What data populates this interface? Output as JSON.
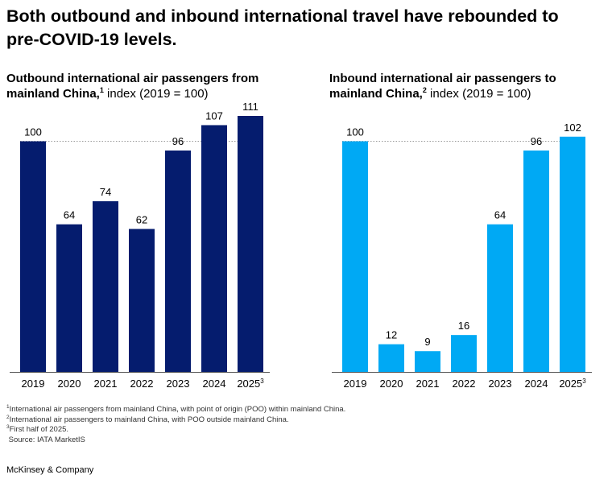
{
  "headline": "Both outbound and inbound international travel have rebounded to pre-COVID-19 levels.",
  "chart_data": [
    {
      "type": "bar",
      "title_bold": "Outbound international air passengers from mainland China,",
      "title_sup": "1",
      "title_rest": " index (2019 = 100)",
      "categories": [
        "2019",
        "2020",
        "2021",
        "2022",
        "2023",
        "2024",
        "2025"
      ],
      "category_sups": [
        "",
        "",
        "",
        "",
        "",
        "",
        "3"
      ],
      "values": [
        100,
        64,
        74,
        62,
        96,
        107,
        111
      ],
      "reference_line": 100,
      "color": "#051c6e",
      "ylim": [
        0,
        111
      ]
    },
    {
      "type": "bar",
      "title_bold": "Inbound international air passengers to mainland China,",
      "title_sup": "2",
      "title_rest": " index (2019 = 100)",
      "categories": [
        "2019",
        "2020",
        "2021",
        "2022",
        "2023",
        "2024",
        "2025"
      ],
      "category_sups": [
        "",
        "",
        "",
        "",
        "",
        "",
        "3"
      ],
      "values": [
        100,
        12,
        9,
        16,
        64,
        96,
        102
      ],
      "reference_line": 100,
      "color": "#00a9f4",
      "ylim": [
        0,
        111
      ]
    }
  ],
  "footnotes": [
    {
      "sup": "1",
      "text": "International air passengers from mainland China, with point of origin (POO) within mainland China."
    },
    {
      "sup": "2",
      "text": "International air passengers to mainland China, with POO outside mainland China."
    },
    {
      "sup": "3",
      "text": "First half of 2025."
    },
    {
      "sup": "",
      "text": "Source: IATA MarketIS"
    }
  ],
  "brand": "McKinsey & Company"
}
